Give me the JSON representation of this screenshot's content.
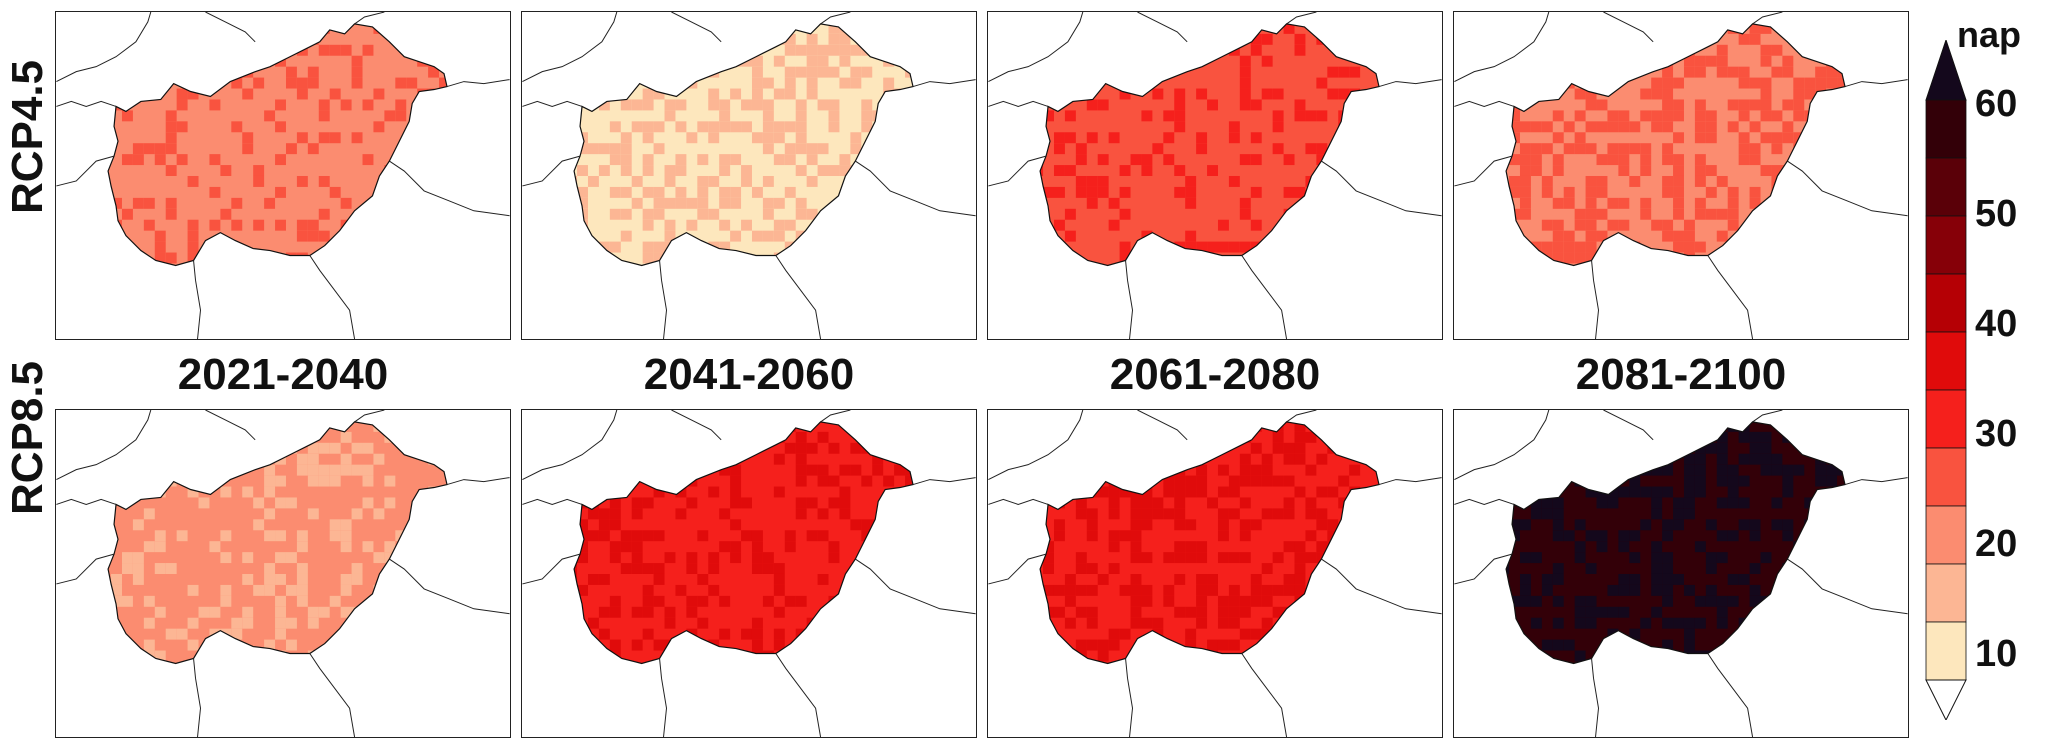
{
  "rows": [
    {
      "label": "RCP4.5"
    },
    {
      "label": "RCP8.5"
    }
  ],
  "periods": [
    "2021-2040",
    "2041-2060",
    "2061-2080",
    "2081-2100"
  ],
  "colorbar": {
    "unit": "nap",
    "ticks": [
      "60",
      "50",
      "40",
      "30",
      "20",
      "10"
    ],
    "bins": [
      {
        "from": 10,
        "to": 15,
        "color": "#fde7bd"
      },
      {
        "from": 15,
        "to": 20,
        "color": "#fcb694"
      },
      {
        "from": 20,
        "to": 25,
        "color": "#fb8c70"
      },
      {
        "from": 25,
        "to": 30,
        "color": "#f9533f"
      },
      {
        "from": 30,
        "to": 35,
        "color": "#f5201c"
      },
      {
        "from": 35,
        "to": 40,
        "color": "#e00b0b"
      },
      {
        "from": 40,
        "to": 45,
        "color": "#b50005"
      },
      {
        "from": 45,
        "to": 50,
        "color": "#860008"
      },
      {
        "from": 50,
        "to": 55,
        "color": "#5a0008"
      },
      {
        "from": 55,
        "to": 60,
        "color": "#330008"
      }
    ],
    "over_color": "#14081c",
    "under_color": "#ffffff"
  },
  "panels": [
    {
      "row": "RCP4.5",
      "period": "2021-2040",
      "base": "#fb8c70",
      "alt": "#f9533f",
      "alt_share": 0.25
    },
    {
      "row": "RCP4.5",
      "period": "2041-2060",
      "base": "#fde7bd",
      "alt": "#fcb694",
      "alt_share": 0.45
    },
    {
      "row": "RCP4.5",
      "period": "2061-2080",
      "base": "#f9533f",
      "alt": "#f5201c",
      "alt_share": 0.25
    },
    {
      "row": "RCP4.5",
      "period": "2081-2100",
      "base": "#fb8c70",
      "alt": "#f9533f",
      "alt_share": 0.45
    },
    {
      "row": "RCP8.5",
      "period": "2021-2040",
      "base": "#fb8c70",
      "alt": "#fcb694",
      "alt_share": 0.3
    },
    {
      "row": "RCP8.5",
      "period": "2041-2060",
      "base": "#f5201c",
      "alt": "#e00b0b",
      "alt_share": 0.35
    },
    {
      "row": "RCP8.5",
      "period": "2061-2080",
      "base": "#f5201c",
      "alt": "#e00b0b",
      "alt_share": 0.45
    },
    {
      "row": "RCP8.5",
      "period": "2081-2100",
      "base": "#330008",
      "alt": "#14081c",
      "alt_share": 0.4
    }
  ]
}
